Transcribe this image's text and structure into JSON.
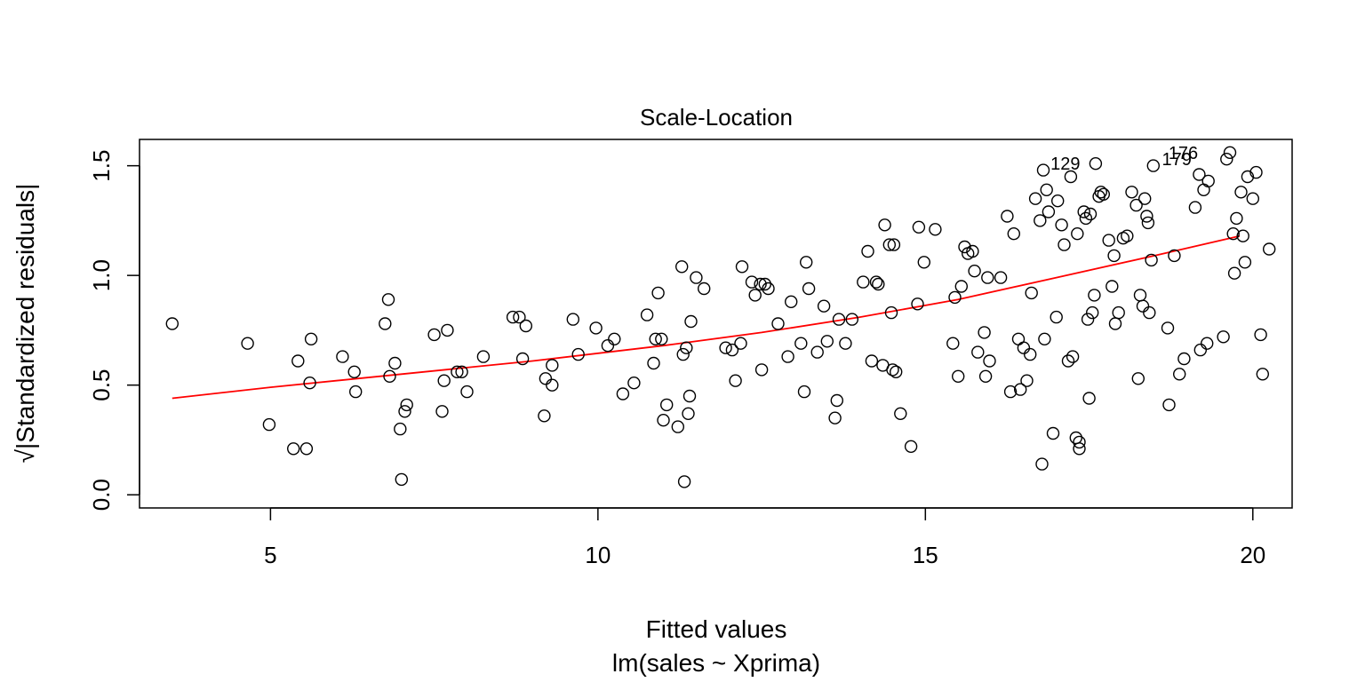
{
  "chart_data": {
    "type": "scatter",
    "title": "Scale-Location",
    "xlabel": "Fitted values",
    "sublabel": "lm(sales ~ Xprima)",
    "ylabel": "√|Standardized residuals|",
    "xlim": [
      3.0,
      20.6
    ],
    "ylim": [
      -0.06,
      1.62
    ],
    "xticks": [
      5,
      10,
      15,
      20
    ],
    "xtick_labels": [
      "5",
      "10",
      "15",
      "20"
    ],
    "yticks": [
      0.0,
      0.5,
      1.0,
      1.5
    ],
    "ytick_labels": [
      "0.0",
      "0.5",
      "1.0",
      "1.5"
    ],
    "grid": false,
    "colors": {
      "points": "#000000",
      "smooth": "#ff0000",
      "axes": "#000000"
    },
    "annotations": [
      {
        "label": "129",
        "x": 17.5,
        "y": 1.51
      },
      {
        "label": "176",
        "x": 19.3,
        "y": 1.56
      },
      {
        "label": "179",
        "x": 19.2,
        "y": 1.53
      }
    ],
    "smooth": {
      "name": "",
      "x": [
        3.5,
        5.0,
        7.0,
        9.0,
        11.0,
        12.5,
        14.0,
        15.5,
        17.0,
        18.5,
        19.8
      ],
      "y": [
        0.44,
        0.49,
        0.55,
        0.61,
        0.68,
        0.74,
        0.81,
        0.89,
        0.99,
        1.09,
        1.18
      ]
    },
    "points": [
      [
        3.5,
        0.78
      ],
      [
        4.65,
        0.69
      ],
      [
        4.98,
        0.32
      ],
      [
        5.35,
        0.21
      ],
      [
        5.42,
        0.61
      ],
      [
        5.55,
        0.21
      ],
      [
        5.6,
        0.51
      ],
      [
        5.62,
        0.71
      ],
      [
        6.1,
        0.63
      ],
      [
        6.28,
        0.56
      ],
      [
        6.3,
        0.47
      ],
      [
        6.75,
        0.78
      ],
      [
        6.8,
        0.89
      ],
      [
        6.82,
        0.54
      ],
      [
        6.9,
        0.6
      ],
      [
        6.98,
        0.3
      ],
      [
        7.0,
        0.07
      ],
      [
        7.05,
        0.38
      ],
      [
        7.08,
        0.41
      ],
      [
        7.5,
        0.73
      ],
      [
        7.62,
        0.38
      ],
      [
        7.65,
        0.52
      ],
      [
        7.7,
        0.75
      ],
      [
        7.85,
        0.56
      ],
      [
        7.92,
        0.56
      ],
      [
        8.0,
        0.47
      ],
      [
        8.25,
        0.63
      ],
      [
        8.7,
        0.81
      ],
      [
        8.8,
        0.81
      ],
      [
        8.85,
        0.62
      ],
      [
        8.9,
        0.77
      ],
      [
        9.18,
        0.36
      ],
      [
        9.2,
        0.53
      ],
      [
        9.3,
        0.59
      ],
      [
        9.3,
        0.5
      ],
      [
        9.62,
        0.8
      ],
      [
        9.7,
        0.64
      ],
      [
        9.97,
        0.76
      ],
      [
        10.15,
        0.68
      ],
      [
        10.25,
        0.71
      ],
      [
        10.38,
        0.46
      ],
      [
        10.55,
        0.51
      ],
      [
        10.75,
        0.82
      ],
      [
        10.85,
        0.6
      ],
      [
        10.88,
        0.71
      ],
      [
        10.92,
        0.92
      ],
      [
        10.97,
        0.71
      ],
      [
        11.0,
        0.34
      ],
      [
        11.05,
        0.41
      ],
      [
        11.22,
        0.31
      ],
      [
        11.28,
        1.04
      ],
      [
        11.3,
        0.64
      ],
      [
        11.35,
        0.67
      ],
      [
        11.38,
        0.37
      ],
      [
        11.4,
        0.45
      ],
      [
        11.42,
        0.79
      ],
      [
        11.32,
        0.06
      ],
      [
        11.5,
        0.99
      ],
      [
        11.62,
        0.94
      ],
      [
        11.95,
        0.67
      ],
      [
        12.05,
        0.66
      ],
      [
        12.1,
        0.52
      ],
      [
        12.18,
        0.69
      ],
      [
        12.2,
        1.04
      ],
      [
        12.35,
        0.97
      ],
      [
        12.4,
        0.91
      ],
      [
        12.48,
        0.96
      ],
      [
        12.5,
        0.57
      ],
      [
        12.55,
        0.96
      ],
      [
        12.6,
        0.94
      ],
      [
        12.75,
        0.78
      ],
      [
        12.9,
        0.63
      ],
      [
        12.95,
        0.88
      ],
      [
        13.1,
        0.69
      ],
      [
        13.15,
        0.47
      ],
      [
        13.18,
        1.06
      ],
      [
        13.22,
        0.94
      ],
      [
        13.35,
        0.65
      ],
      [
        13.45,
        0.86
      ],
      [
        13.5,
        0.7
      ],
      [
        13.62,
        0.35
      ],
      [
        13.65,
        0.43
      ],
      [
        13.68,
        0.8
      ],
      [
        13.78,
        0.69
      ],
      [
        13.88,
        0.8
      ],
      [
        14.05,
        0.97
      ],
      [
        14.12,
        1.11
      ],
      [
        14.18,
        0.61
      ],
      [
        14.25,
        0.97
      ],
      [
        14.28,
        0.96
      ],
      [
        14.35,
        0.59
      ],
      [
        14.38,
        1.23
      ],
      [
        14.45,
        1.14
      ],
      [
        14.48,
        0.83
      ],
      [
        14.5,
        0.57
      ],
      [
        14.52,
        1.14
      ],
      [
        14.55,
        0.56
      ],
      [
        14.62,
        0.37
      ],
      [
        14.78,
        0.22
      ],
      [
        14.88,
        0.87
      ],
      [
        14.9,
        1.22
      ],
      [
        14.98,
        1.06
      ],
      [
        15.15,
        1.21
      ],
      [
        15.42,
        0.69
      ],
      [
        15.45,
        0.9
      ],
      [
        15.5,
        0.54
      ],
      [
        15.55,
        0.95
      ],
      [
        15.6,
        1.13
      ],
      [
        15.65,
        1.1
      ],
      [
        15.72,
        1.11
      ],
      [
        15.75,
        1.02
      ],
      [
        15.8,
        0.65
      ],
      [
        15.9,
        0.74
      ],
      [
        15.92,
        0.54
      ],
      [
        15.95,
        0.99
      ],
      [
        15.98,
        0.61
      ],
      [
        16.15,
        0.99
      ],
      [
        16.25,
        1.27
      ],
      [
        16.3,
        0.47
      ],
      [
        16.35,
        1.19
      ],
      [
        16.42,
        0.71
      ],
      [
        16.45,
        0.48
      ],
      [
        16.5,
        0.67
      ],
      [
        16.55,
        0.52
      ],
      [
        16.6,
        0.64
      ],
      [
        16.62,
        0.92
      ],
      [
        16.68,
        1.35
      ],
      [
        16.75,
        1.25
      ],
      [
        16.78,
        0.14
      ],
      [
        16.8,
        1.48
      ],
      [
        16.82,
        0.71
      ],
      [
        16.85,
        1.39
      ],
      [
        16.88,
        1.29
      ],
      [
        16.95,
        0.28
      ],
      [
        17.0,
        0.81
      ],
      [
        17.02,
        1.34
      ],
      [
        17.08,
        1.23
      ],
      [
        17.12,
        1.14
      ],
      [
        17.18,
        0.61
      ],
      [
        17.22,
        1.45
      ],
      [
        17.25,
        0.63
      ],
      [
        17.3,
        0.26
      ],
      [
        17.32,
        1.19
      ],
      [
        17.35,
        0.24
      ],
      [
        17.35,
        0.21
      ],
      [
        17.42,
        1.29
      ],
      [
        17.45,
        1.26
      ],
      [
        17.48,
        0.8
      ],
      [
        17.5,
        0.44
      ],
      [
        17.52,
        1.28
      ],
      [
        17.55,
        0.83
      ],
      [
        17.58,
        0.91
      ],
      [
        17.6,
        1.51
      ],
      [
        17.65,
        1.36
      ],
      [
        17.68,
        1.38
      ],
      [
        17.72,
        1.37
      ],
      [
        17.8,
        1.16
      ],
      [
        17.85,
        0.95
      ],
      [
        17.88,
        1.09
      ],
      [
        17.9,
        0.78
      ],
      [
        17.95,
        0.83
      ],
      [
        18.02,
        1.17
      ],
      [
        18.08,
        1.18
      ],
      [
        18.15,
        1.38
      ],
      [
        18.22,
        1.32
      ],
      [
        18.25,
        0.53
      ],
      [
        18.28,
        0.91
      ],
      [
        18.32,
        0.86
      ],
      [
        18.35,
        1.35
      ],
      [
        18.38,
        1.27
      ],
      [
        18.4,
        1.24
      ],
      [
        18.42,
        0.83
      ],
      [
        18.45,
        1.07
      ],
      [
        18.48,
        1.5
      ],
      [
        18.7,
        0.76
      ],
      [
        18.72,
        0.41
      ],
      [
        18.8,
        1.09
      ],
      [
        18.88,
        0.55
      ],
      [
        18.95,
        0.62
      ],
      [
        19.12,
        1.31
      ],
      [
        19.18,
        1.46
      ],
      [
        19.2,
        0.66
      ],
      [
        19.25,
        1.39
      ],
      [
        19.3,
        0.69
      ],
      [
        19.32,
        1.43
      ],
      [
        19.55,
        0.72
      ],
      [
        19.6,
        1.53
      ],
      [
        19.65,
        1.56
      ],
      [
        19.7,
        1.19
      ],
      [
        19.72,
        1.01
      ],
      [
        19.75,
        1.26
      ],
      [
        19.82,
        1.38
      ],
      [
        19.85,
        1.18
      ],
      [
        19.88,
        1.06
      ],
      [
        19.92,
        1.45
      ],
      [
        20.0,
        1.35
      ],
      [
        20.05,
        1.47
      ],
      [
        20.12,
        0.73
      ],
      [
        20.15,
        0.55
      ],
      [
        20.25,
        1.12
      ]
    ]
  }
}
